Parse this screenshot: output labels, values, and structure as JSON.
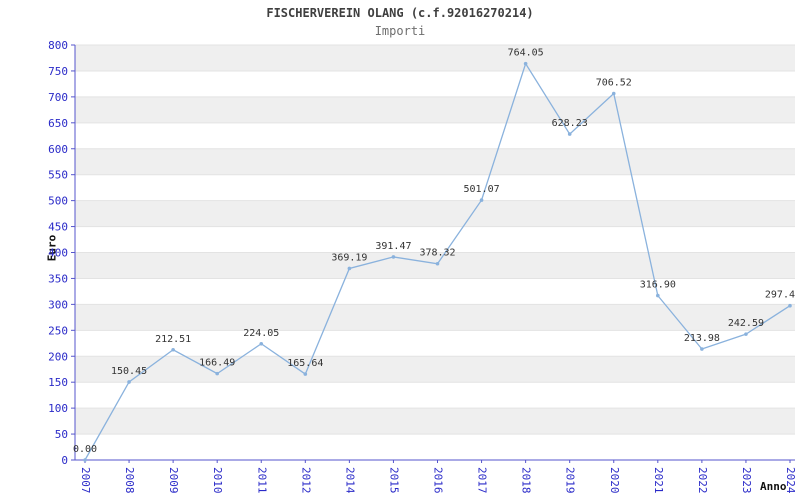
{
  "chart_data": {
    "type": "line",
    "title": "FISCHERVEREIN OLANG (c.f.92016270214)",
    "subtitle": "Importi",
    "xlabel": "Anno",
    "ylabel": "Euro",
    "ylim": [
      0,
      800
    ],
    "ytick_step": 50,
    "yticks": [
      0,
      50,
      100,
      150,
      200,
      250,
      300,
      350,
      400,
      450,
      500,
      550,
      600,
      650,
      700,
      750,
      800
    ],
    "categories": [
      "2007",
      "2008",
      "2009",
      "2010",
      "2011",
      "2012",
      "2014",
      "2015",
      "2016",
      "2017",
      "2018",
      "2019",
      "2020",
      "2021",
      "2022",
      "2023",
      "2024"
    ],
    "values": [
      0.0,
      150.45,
      212.51,
      166.49,
      224.05,
      165.64,
      369.19,
      391.47,
      378.32,
      501.07,
      764.05,
      628.23,
      706.52,
      316.9,
      213.98,
      242.59,
      297.4
    ],
    "point_labels": [
      "0.00",
      "150.45",
      "212.51",
      "166.49",
      "224.05",
      "165.64",
      "369.19",
      "391.47",
      "378.32",
      "501.07",
      "764.05",
      "628.23",
      "706.52",
      "316.90",
      "213.98",
      "242.59",
      "297.4"
    ],
    "grid": true,
    "legend": "none",
    "colors": {
      "line": "#8ab2dd",
      "band": "#efefef",
      "grid_line": "#e3e3e3",
      "axis": "#5555cc",
      "tick_text": "#2a2ac8",
      "point_label_text": "#333333",
      "title_text": "#3f3f3f",
      "subtitle_text": "#6e6e6e",
      "axis_title_text": "#111111"
    }
  }
}
